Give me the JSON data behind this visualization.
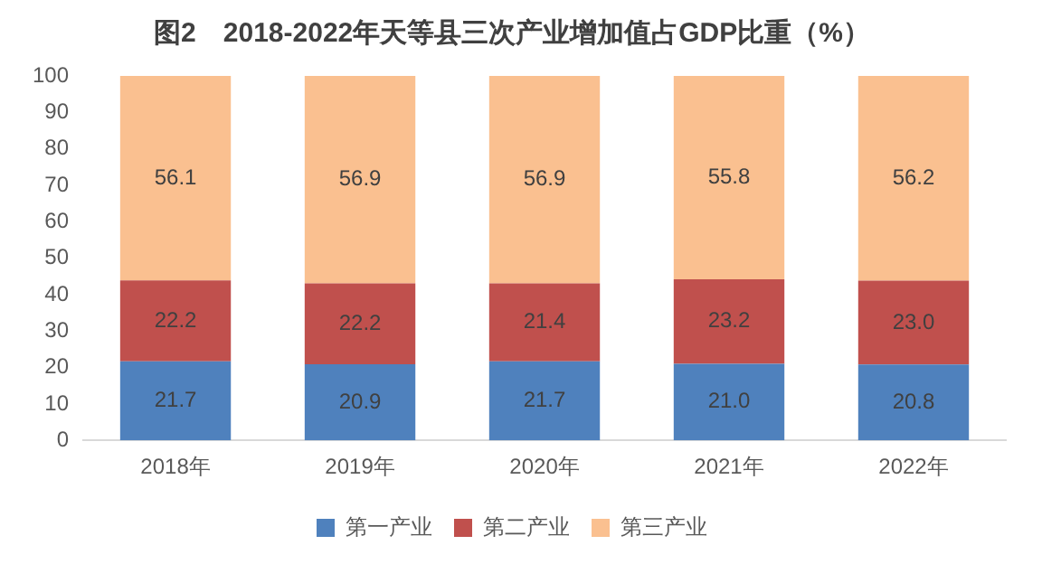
{
  "chart_data": {
    "type": "bar",
    "title": "图2　2018-2022年天等县三次产业增加值占GDP比重（%）",
    "stacked": true,
    "categories": [
      "2018年",
      "2019年",
      "2020年",
      "2021年",
      "2022年"
    ],
    "series": [
      {
        "name": "第一产业",
        "color": "#4f81bd",
        "values": [
          21.7,
          20.9,
          21.7,
          21.0,
          20.8
        ],
        "value_labels": [
          "21.7",
          "20.9",
          "21.7",
          "21.0",
          "20.8"
        ]
      },
      {
        "name": "第二产业",
        "color": "#c0504d",
        "values": [
          22.2,
          22.2,
          21.4,
          23.2,
          23.0
        ],
        "value_labels": [
          "22.2",
          "22.2",
          "21.4",
          "23.2",
          "23.0"
        ]
      },
      {
        "name": "第三产业",
        "color": "#fac090",
        "values": [
          56.1,
          56.9,
          56.9,
          55.8,
          56.2
        ],
        "value_labels": [
          "56.1",
          "56.9",
          "56.9",
          "55.8",
          "56.2"
        ]
      }
    ],
    "ylim": [
      0,
      100
    ],
    "yticks": [
      0,
      10,
      20,
      30,
      40,
      50,
      60,
      70,
      80,
      90,
      100
    ],
    "grid": false,
    "legend": "bottom"
  }
}
